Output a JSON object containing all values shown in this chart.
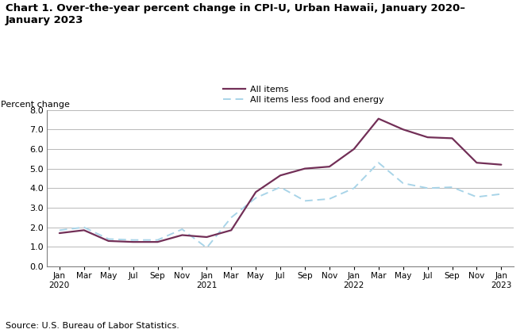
{
  "title_line1": "Chart 1. Over-the-year percent change in CPI-U, Urban Hawaii, January 2020–",
  "title_line2": "January 2023",
  "ylabel": "Percent change",
  "source": "Source: U.S. Bureau of Labor Statistics.",
  "ylim": [
    0.0,
    8.0
  ],
  "yticks": [
    0.0,
    1.0,
    2.0,
    3.0,
    4.0,
    5.0,
    6.0,
    7.0,
    8.0
  ],
  "all_items": [
    1.7,
    1.85,
    1.3,
    1.25,
    1.25,
    1.6,
    1.5,
    1.85,
    3.8,
    4.65,
    5.0,
    5.1,
    6.0,
    7.55,
    7.0,
    6.6,
    6.55,
    5.3,
    5.2
  ],
  "core_items": [
    1.85,
    2.0,
    1.4,
    1.35,
    1.35,
    1.9,
    0.95,
    2.5,
    3.5,
    4.05,
    3.35,
    3.45,
    4.0,
    5.3,
    4.25,
    4.0,
    4.05,
    3.55,
    3.7
  ],
  "month_labels": [
    "Jan",
    "Mar",
    "May",
    "Jul",
    "Sep",
    "Nov",
    "Jan",
    "Mar",
    "May",
    "Jul",
    "Sep",
    "Nov",
    "Jan",
    "Mar",
    "May",
    "Jul",
    "Sep",
    "Nov",
    "Jan"
  ],
  "year_tick_indices": [
    0,
    6,
    12,
    18
  ],
  "year_labels": [
    "2020",
    "2021",
    "2022",
    "2023"
  ],
  "all_items_color": "#722f57",
  "core_items_color": "#a8d4e8",
  "all_items_label": "All items",
  "core_items_label": "All items less food and energy",
  "background_color": "#ffffff",
  "grid_color": "#b8b8b8"
}
